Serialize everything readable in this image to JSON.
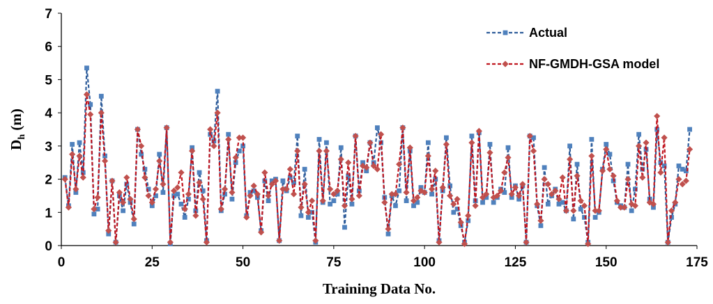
{
  "chart_data": {
    "type": "line",
    "xlabel": "Training Data No.",
    "ylabel_main": "D",
    "ylabel_sub": "h",
    "ylabel_unit": " (m)",
    "xlim": [
      0,
      175
    ],
    "ylim": [
      0,
      7
    ],
    "xticks": [
      0,
      25,
      50,
      75,
      100,
      125,
      150,
      175
    ],
    "yticks": [
      0,
      1,
      2,
      3,
      4,
      5,
      6,
      7
    ],
    "grid": false,
    "legend_position": "top-right",
    "series": [
      {
        "name": "Actual",
        "color": "#2E5C9A",
        "marker_color": "#4F81BD",
        "marker": "square",
        "line_style": "dashed",
        "values": [
          2.05,
          1.2,
          3.05,
          1.6,
          3.1,
          2.2,
          5.35,
          4.25,
          0.95,
          1.1,
          4.5,
          2.7,
          0.35,
          1.95,
          0.1,
          1.5,
          1.05,
          1.85,
          1.3,
          0.65,
          3.5,
          2.75,
          2.3,
          1.7,
          1.2,
          1.5,
          2.75,
          1.6,
          3.55,
          0.05,
          1.5,
          1.55,
          1.25,
          0.85,
          1.4,
          2.95,
          1.05,
          2.2,
          1.65,
          0.15,
          3.35,
          3.15,
          4.65,
          1.05,
          1.55,
          3.35,
          1.4,
          2.5,
          2.85,
          3.0,
          0.9,
          1.6,
          1.65,
          1.45,
          0.45,
          1.95,
          1.35,
          1.95,
          2.0,
          0.15,
          1.95,
          1.65,
          2.05,
          1.9,
          3.3,
          0.9,
          2.3,
          0.85,
          1.0,
          0.1,
          3.2,
          1.3,
          3.1,
          1.25,
          1.35,
          1.55,
          2.95,
          0.55,
          2.1,
          1.25,
          3.3,
          1.65,
          2.5,
          2.25,
          3.1,
          2.5,
          3.55,
          3.1,
          1.45,
          0.35,
          1.5,
          1.2,
          1.65,
          3.55,
          1.35,
          2.85,
          1.2,
          1.3,
          1.75,
          1.6,
          3.1,
          1.55,
          2.0,
          0.15,
          1.65,
          3.25,
          1.8,
          1.0,
          1.1,
          0.6,
          0.1,
          0.75,
          3.3,
          1.35,
          3.4,
          1.3,
          1.45,
          3.05,
          1.3,
          1.45,
          1.7,
          1.6,
          2.95,
          1.45,
          1.8,
          1.4,
          1.8,
          0.1,
          3.3,
          3.25,
          1.2,
          0.6,
          2.35,
          1.25,
          1.5,
          1.7,
          1.25,
          1.3,
          1.05,
          3.0,
          0.8,
          2.45,
          1.1,
          0.85,
          0.1,
          3.2,
          0.85,
          1.0,
          2.3,
          3.05,
          2.75,
          1.95,
          1.3,
          1.2,
          1.15,
          2.45,
          1.05,
          1.7,
          3.35,
          2.3,
          2.9,
          1.4,
          1.15,
          3.5,
          2.5,
          2.4,
          0.1,
          0.85,
          1.25,
          2.4,
          2.3,
          2.25,
          3.5
        ]
      },
      {
        "name": "NF-GMDH-GSA model",
        "color": "#C0141E",
        "marker_color": "#C0504D",
        "marker": "diamond",
        "line_style": "dashed",
        "values": [
          2.0,
          1.15,
          2.75,
          1.7,
          2.7,
          2.05,
          4.55,
          3.95,
          1.1,
          1.45,
          4.0,
          2.55,
          0.45,
          1.95,
          0.1,
          1.6,
          1.3,
          2.05,
          1.4,
          0.8,
          3.5,
          3.0,
          2.05,
          1.5,
          1.3,
          1.7,
          2.55,
          1.85,
          3.55,
          0.1,
          1.65,
          1.75,
          2.2,
          1.1,
          1.55,
          2.85,
          0.9,
          1.9,
          1.4,
          0.1,
          3.5,
          3.0,
          4.0,
          1.1,
          1.7,
          3.2,
          1.6,
          2.65,
          3.25,
          3.25,
          0.85,
          1.5,
          1.8,
          1.55,
          0.4,
          2.2,
          1.5,
          1.85,
          1.95,
          0.15,
          1.7,
          1.7,
          2.3,
          1.55,
          2.85,
          1.15,
          1.85,
          1.0,
          1.35,
          0.15,
          2.85,
          1.35,
          2.85,
          1.7,
          1.55,
          1.65,
          2.6,
          1.2,
          2.5,
          1.4,
          3.3,
          1.5,
          2.4,
          2.35,
          3.1,
          2.4,
          2.3,
          3.35,
          1.3,
          0.5,
          1.55,
          1.55,
          2.45,
          3.55,
          1.6,
          2.95,
          1.35,
          1.45,
          1.65,
          1.6,
          2.7,
          1.7,
          2.25,
          0.1,
          1.75,
          3.05,
          1.5,
          1.25,
          1.4,
          0.7,
          0.05,
          0.9,
          3.1,
          1.2,
          3.45,
          1.45,
          1.55,
          2.8,
          1.45,
          1.5,
          1.65,
          2.2,
          2.65,
          1.55,
          1.75,
          1.5,
          1.85,
          0.1,
          3.3,
          2.85,
          1.25,
          0.75,
          2.0,
          1.85,
          1.55,
          1.65,
          1.4,
          2.05,
          1.05,
          2.6,
          1.05,
          2.1,
          1.35,
          1.2,
          0.05,
          2.7,
          1.05,
          1.05,
          2.25,
          2.9,
          2.3,
          2.1,
          1.35,
          1.15,
          1.15,
          2.0,
          1.25,
          1.2,
          3.0,
          2.05,
          3.1,
          1.3,
          1.25,
          3.9,
          2.2,
          3.25,
          0.1,
          1.05,
          1.3,
          2.0,
          1.85,
          1.95,
          2.9
        ]
      }
    ]
  }
}
